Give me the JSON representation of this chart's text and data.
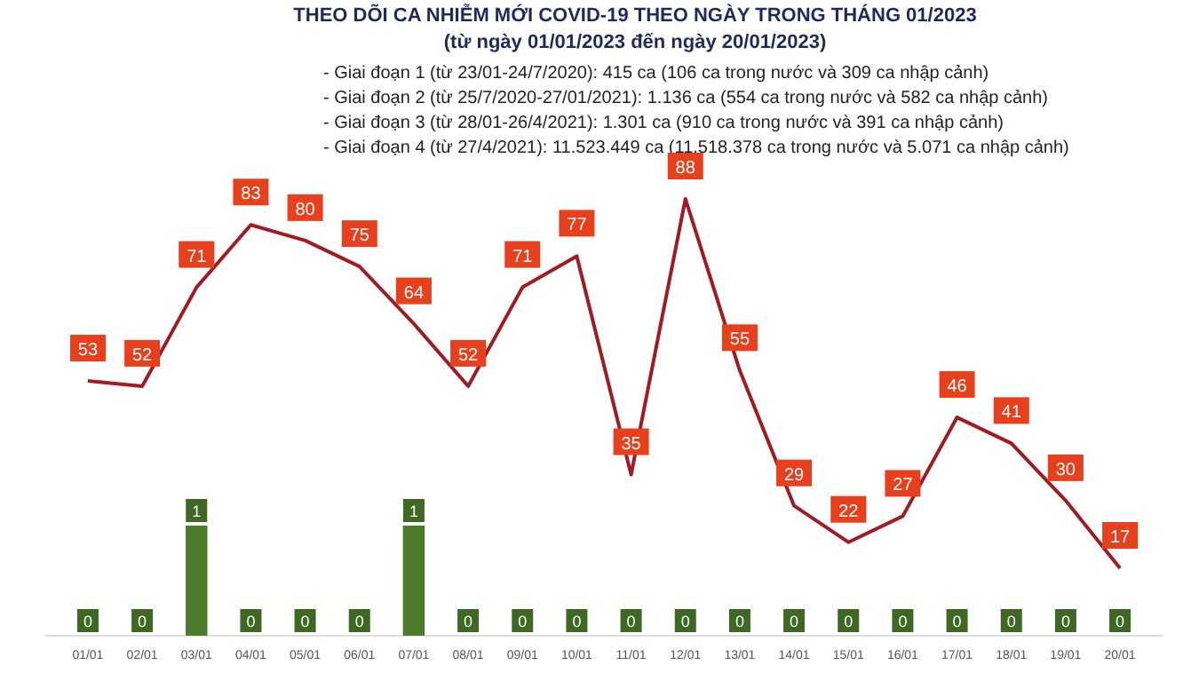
{
  "chart_data": {
    "type": "bar",
    "title": "THEO DÕI CA NHIỄM MỚI COVID-19 THEO NGÀY TRONG THÁNG 01/2023",
    "subtitle": "(từ ngày 01/01/2023 đến ngày 20/01/2023)",
    "annotations": [
      "- Giai đoạn 1 (từ 23/01-24/7/2020): 415 ca (106 ca trong nước và 309 ca nhập cảnh)",
      "- Giai đoạn 2 (từ 25/7/2020-27/01/2021): 1.136 ca (554 ca trong nước và 582 ca nhập cảnh)",
      "- Giai đoạn 3 (từ 28/01-26/4/2021): 1.301 ca (910 ca trong nước và 391 ca nhập cảnh)",
      "- Giai đoạn 4 (từ 27/4/2021): 11.523.449 ca (11.518.378 ca trong nước và 5.071 ca nhập cảnh)"
    ],
    "categories": [
      "01/01",
      "02/01",
      "03/01",
      "04/01",
      "05/01",
      "06/01",
      "07/01",
      "08/01",
      "09/01",
      "10/01",
      "11/01",
      "12/01",
      "13/01",
      "14/01",
      "15/01",
      "16/01",
      "17/01",
      "18/01",
      "19/01",
      "20/01"
    ],
    "series": [
      {
        "axis": "y2",
        "color": "#4a7c2a",
        "values": [
          0,
          0,
          1,
          0,
          0,
          0,
          1,
          0,
          0,
          0,
          0,
          0,
          0,
          0,
          0,
          0,
          0,
          0,
          0,
          0
        ]
      },
      {
        "type": "line",
        "color": "#a01c22",
        "values": [
          53,
          52,
          71,
          83,
          80,
          75,
          64,
          52,
          71,
          77,
          35,
          88,
          55,
          29,
          22,
          27,
          46,
          41,
          30,
          17
        ]
      }
    ],
    "data_labels": true
  }
}
